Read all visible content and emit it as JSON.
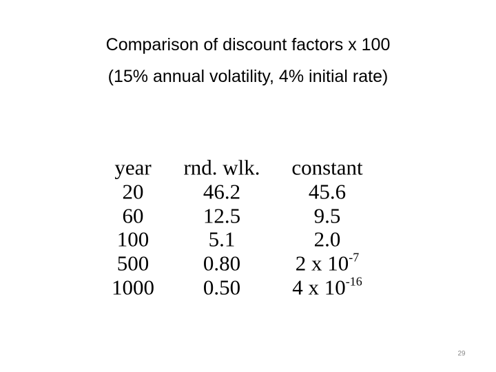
{
  "title": {
    "line1": "Comparison of discount factors x 100",
    "line2": "(15% annual volatility, 4% initial rate)"
  },
  "table": {
    "header": [
      "year",
      "rnd. wlk.",
      "constant"
    ],
    "rows": [
      [
        "20",
        "46.2",
        "45.6"
      ],
      [
        "60",
        "12.5",
        "9.5"
      ],
      [
        "100",
        "5.1",
        "2.0"
      ],
      [
        "500",
        "0.80",
        {
          "base": "2 x 10",
          "exp": "-7"
        }
      ],
      [
        "1000",
        "0.50",
        {
          "base": "4 x 10",
          "exp": "-16"
        }
      ]
    ]
  },
  "page_number": "29"
}
